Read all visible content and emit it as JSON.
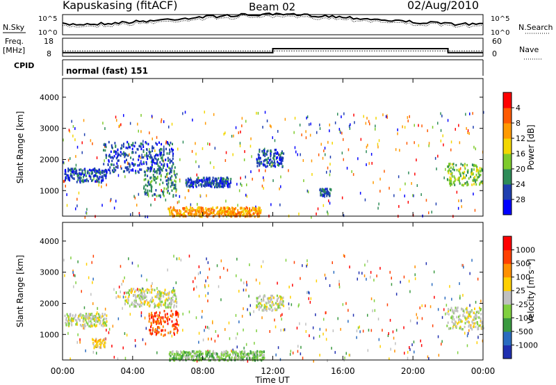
{
  "header": {
    "station": "Kapuskasing (fitACF)",
    "beam": "Beam 02",
    "date": "02/Aug/2010"
  },
  "labels": {
    "nsky": "N.Sky",
    "nsearch": "N.Search",
    "freq": "Freq.",
    "mhz": "[MHz]",
    "nave": "Nave",
    "cpid": "CPID",
    "mode": "normal (fast)  151",
    "slant_range": "Slant Range [km]",
    "time_ut": "Time UT",
    "power": "Power [dB]",
    "velocity": "Velocity [m s⁻¹]"
  },
  "colors": {
    "background": "#ffffff",
    "axis": "#000000",
    "power_scale": [
      "#0000ff",
      "#1f3fb0",
      "#2e8c58",
      "#7ecb2c",
      "#f3d700",
      "#ff9a00",
      "#ff5a00",
      "#ff0000"
    ],
    "velocity_scale": [
      "#2030b0",
      "#2a6cc0",
      "#3a9a40",
      "#80d040",
      "#c0c0c0",
      "#ffd000",
      "#ff9000",
      "#ff4000",
      "#ff0000"
    ]
  },
  "chart_data": [
    {
      "type": "line",
      "name": "N.Sky / N.Search",
      "left_ticks": [
        "10^5",
        "10^0"
      ],
      "right_ticks": [
        "10^5",
        "10^0"
      ]
    },
    {
      "type": "line",
      "name": "Freq / Nave",
      "left_ticks": [
        "18",
        "8"
      ],
      "right_ticks": [
        "60",
        "0"
      ],
      "freq_mhz": [
        {
          "x": 0,
          "y": 10.5
        },
        {
          "x": 12,
          "y": 10.5
        },
        {
          "x": 12,
          "y": 13.9
        },
        {
          "x": 22,
          "y": 13.9
        },
        {
          "x": 22,
          "y": 10.5
        },
        {
          "x": 24,
          "y": 10.5
        }
      ],
      "nave_level": 24
    },
    {
      "type": "heatmap",
      "name": "Power",
      "xlabel": "Time UT",
      "ylabel": "Slant Range [km]",
      "xlim": [
        0,
        24
      ],
      "ylim": [
        180,
        4600
      ],
      "yticks": [
        1000,
        2000,
        3000,
        4000
      ],
      "xticks": [
        "00:00",
        "04:00",
        "08:00",
        "12:00",
        "16:00",
        "20:00",
        "00:00"
      ],
      "colorbar": {
        "label": "Power [dB]",
        "ticks": [
          "4",
          "8",
          "12",
          "16",
          "20",
          "24",
          "28"
        ]
      },
      "blobs": [
        {
          "t0": 0.1,
          "t1": 2.5,
          "r0": 1300,
          "r1": 1750,
          "level": 1
        },
        {
          "t0": 2.3,
          "t1": 6.3,
          "r0": 1600,
          "r1": 2600,
          "level": 1
        },
        {
          "t0": 4.6,
          "t1": 6.5,
          "r0": 850,
          "r1": 1800,
          "level": 2
        },
        {
          "t0": 6.0,
          "t1": 11.3,
          "r0": 200,
          "r1": 500,
          "level": 5
        },
        {
          "t0": 7.0,
          "t1": 9.6,
          "r0": 1150,
          "r1": 1450,
          "level": 1
        },
        {
          "t0": 11.0,
          "t1": 12.6,
          "r0": 1800,
          "r1": 2350,
          "level": 1
        },
        {
          "t0": 14.6,
          "t1": 15.3,
          "r0": 850,
          "r1": 1100,
          "level": 1
        },
        {
          "t0": 21.9,
          "t1": 24.0,
          "r0": 1200,
          "r1": 1900,
          "level": 3
        }
      ]
    },
    {
      "type": "heatmap",
      "name": "Velocity",
      "xlabel": "Time UT",
      "ylabel": "Slant Range [km]",
      "xlim": [
        0,
        24
      ],
      "ylim": [
        180,
        4600
      ],
      "yticks": [
        1000,
        2000,
        3000,
        4000
      ],
      "xticks": [
        "00:00",
        "04:00",
        "08:00",
        "12:00",
        "16:00",
        "20:00",
        "00:00"
      ],
      "colorbar": {
        "label": "Velocity [m s⁻¹]",
        "ticks": [
          "1000",
          "500",
          "100",
          "25",
          "-25",
          "-100",
          "-500",
          "-1000"
        ]
      },
      "blobs": [
        {
          "t0": 0.1,
          "t1": 2.5,
          "r0": 1300,
          "r1": 1700,
          "level": 4
        },
        {
          "t0": 1.7,
          "t1": 2.4,
          "r0": 600,
          "r1": 900,
          "level": 5
        },
        {
          "t0": 4.9,
          "t1": 6.6,
          "r0": 1000,
          "r1": 1800,
          "level": 7
        },
        {
          "t0": 6.0,
          "t1": 11.5,
          "r0": 200,
          "r1": 500,
          "level": 3
        },
        {
          "t0": 3.5,
          "t1": 6.5,
          "r0": 1900,
          "r1": 2500,
          "level": 4
        },
        {
          "t0": 11.0,
          "t1": 12.6,
          "r0": 1800,
          "r1": 2300,
          "level": 4
        },
        {
          "t0": 21.9,
          "t1": 24.0,
          "r0": 1200,
          "r1": 1900,
          "level": 4
        }
      ]
    }
  ]
}
